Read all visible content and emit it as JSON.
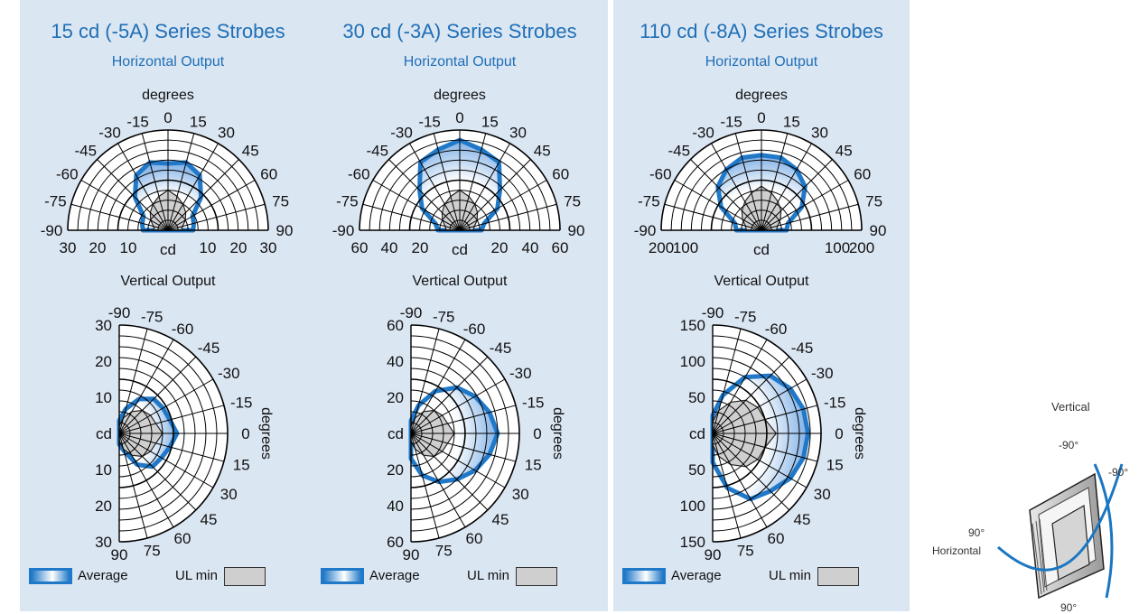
{
  "legend": {
    "average": "Average",
    "ul_min": "UL min"
  },
  "labels": {
    "horizontal": "Horizontal Output",
    "vertical": "Vertical Output",
    "degrees": "degrees",
    "cd": "cd"
  },
  "colors": {
    "panel_bg": "#dbe6f3",
    "average_line": "#1f78c8",
    "ul_min_fill": "#cfcfcf"
  },
  "panels": [
    {
      "title": "15 cd (-5A) Series Strobes",
      "h_ticks": [
        "30",
        "20",
        "10",
        "10",
        "20",
        "30"
      ],
      "v_ticks": [
        "30",
        "20",
        "10",
        "10",
        "20",
        "30"
      ]
    },
    {
      "title": "30 cd (-3A) Series Strobes",
      "h_ticks": [
        "60",
        "40",
        "20",
        "20",
        "40",
        "60"
      ],
      "v_ticks": [
        "60",
        "40",
        "20",
        "20",
        "40",
        "60"
      ]
    },
    {
      "title": "110 cd (-8A) Series Strobes",
      "h_ticks": [
        "200",
        "100",
        "100",
        "200"
      ],
      "v_ticks": [
        "150",
        "100",
        "50",
        "50",
        "100",
        "150"
      ]
    }
  ],
  "diagram": {
    "vertical": "Vertical",
    "horizontal": "Horizontal",
    "angle_top_left": "-90°",
    "angle_top_right": "-90°",
    "angle_left": "90°",
    "angle_bottom": "90°"
  },
  "chart_data": [
    {
      "type": "polar",
      "title": "15 cd (-5A) Series Strobes",
      "subtitle": "Horizontal Output",
      "unit": "cd",
      "angle_label": "degrees",
      "angles": [
        -90,
        -75,
        -60,
        -45,
        -30,
        -15,
        0,
        15,
        30,
        45,
        60,
        75,
        90
      ],
      "r_max": 30,
      "r_ticks": [
        10,
        20,
        30
      ],
      "series": [
        {
          "name": "Average",
          "values": [
            7.5,
            8,
            8.5,
            14,
            19,
            21,
            20,
            21,
            19,
            14,
            8.5,
            8,
            7.5
          ]
        },
        {
          "name": "UL min",
          "values": [
            4,
            4.5,
            6,
            7.5,
            9,
            10.5,
            12,
            10.5,
            9,
            7.5,
            6,
            4.5,
            4
          ]
        }
      ]
    },
    {
      "type": "polar",
      "title": "15 cd (-5A) Series Strobes",
      "subtitle": "Vertical Output",
      "unit": "cd",
      "angle_label": "degrees",
      "angles": [
        -90,
        -75,
        -60,
        -45,
        -30,
        -15,
        0,
        15,
        30,
        45,
        60,
        75,
        90
      ],
      "r_max": 30,
      "r_ticks": [
        10,
        20,
        30
      ],
      "series": [
        {
          "name": "Average",
          "values": [
            3.5,
            7,
            11,
            13.5,
            14,
            14.5,
            16,
            14.5,
            13.5,
            13,
            10,
            5,
            3
          ]
        },
        {
          "name": "UL min",
          "values": [
            2,
            4.5,
            7,
            9,
            10,
            10.5,
            12,
            10.5,
            10,
            9,
            7,
            4.5,
            2
          ]
        }
      ]
    },
    {
      "type": "polar",
      "title": "30 cd (-3A) Series Strobes",
      "subtitle": "Horizontal Output",
      "unit": "cd",
      "angle_label": "degrees",
      "angles": [
        -90,
        -75,
        -60,
        -45,
        -30,
        -15,
        0,
        15,
        30,
        45,
        60,
        75,
        90
      ],
      "r_max": 60,
      "r_ticks": [
        20,
        40,
        60
      ],
      "series": [
        {
          "name": "Average",
          "values": [
            13,
            15,
            26,
            34,
            47,
            50,
            54,
            50,
            47,
            34,
            26,
            15,
            13
          ]
        },
        {
          "name": "UL min",
          "values": [
            8,
            9,
            12,
            15,
            18,
            21,
            24,
            21,
            18,
            15,
            12,
            9,
            8
          ]
        }
      ]
    },
    {
      "type": "polar",
      "title": "30 cd (-3A) Series Strobes",
      "subtitle": "Vertical Output",
      "unit": "cd",
      "angle_label": "degrees",
      "angles": [
        -90,
        -75,
        -60,
        -45,
        -30,
        -15,
        0,
        15,
        30,
        45,
        60,
        75,
        90
      ],
      "r_max": 60,
      "r_ticks": [
        20,
        40,
        60
      ],
      "series": [
        {
          "name": "Average",
          "values": [
            7,
            16,
            27,
            36,
            41,
            45,
            48,
            45,
            41,
            36,
            31,
            24,
            14
          ]
        },
        {
          "name": "UL min",
          "values": [
            4,
            9,
            14,
            18,
            20,
            21,
            24,
            21,
            20,
            18,
            14,
            9,
            4
          ]
        }
      ]
    },
    {
      "type": "polar",
      "title": "110 cd (-8A) Series Strobes",
      "subtitle": "Horizontal Output",
      "unit": "cd",
      "angle_label": "degrees",
      "angles": [
        -90,
        -75,
        -60,
        -45,
        -30,
        -15,
        0,
        15,
        30,
        45,
        60,
        75,
        90
      ],
      "r_max": 200,
      "r_ticks": [
        50,
        100,
        150,
        200
      ],
      "series": [
        {
          "name": "Average",
          "values": [
            50,
            55,
            93,
            123,
            140,
            150,
            150,
            150,
            140,
            123,
            93,
            55,
            50
          ]
        },
        {
          "name": "UL min",
          "values": [
            30,
            33,
            44,
            55,
            66,
            77,
            88,
            77,
            66,
            55,
            44,
            33,
            30
          ]
        }
      ]
    },
    {
      "type": "polar",
      "title": "110 cd (-8A) Series Strobes",
      "subtitle": "Vertical Output",
      "unit": "cd",
      "angle_label": "degrees",
      "angles": [
        -90,
        -75,
        -60,
        -45,
        -30,
        -15,
        0,
        15,
        30,
        45,
        60,
        75,
        90
      ],
      "r_max": 150,
      "r_ticks": [
        50,
        100,
        150
      ],
      "series": [
        {
          "name": "Average",
          "values": [
            25,
            55,
            90,
            113,
            124,
            130,
            132,
            130,
            124,
            113,
            105,
            78,
            40
          ]
        },
        {
          "name": "UL min",
          "values": [
            16,
            33,
            50,
            65,
            72,
            75,
            88,
            75,
            72,
            65,
            50,
            33,
            16
          ]
        }
      ]
    }
  ]
}
